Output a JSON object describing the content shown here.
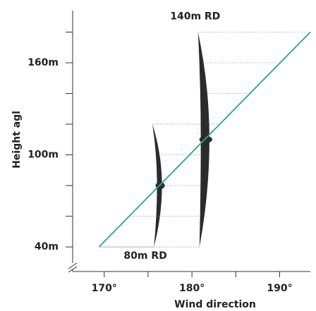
{
  "chart_data": {
    "type": "line",
    "x_label": "Wind direction",
    "y_label": "Height agl",
    "x": [
      169.4,
      193.5
    ],
    "series": [
      {
        "color": "#2aa87e",
        "values": [
          40,
          180
        ]
      }
    ],
    "xlim": [
      166.4,
      193.5
    ],
    "xticks": [
      {
        "value": 170,
        "label": "170°"
      },
      {
        "value": 180,
        "label": "180°"
      },
      {
        "value": 190,
        "label": "190°"
      }
    ],
    "xminor": [
      175,
      185
    ],
    "ylim": [
      24,
      194
    ],
    "yticks": [
      {
        "value": 40,
        "label": "40m"
      },
      {
        "value": 100,
        "label": "100m"
      },
      {
        "value": 160,
        "label": "160m"
      }
    ],
    "yminor": [
      60,
      80,
      120,
      140,
      180
    ],
    "turbines": [
      {
        "label": "80m RD",
        "x": 176.3,
        "hub": 80,
        "diameter": 80
      },
      {
        "label": "140m RD",
        "x": 181.5,
        "hub": 110,
        "diameter": 140
      }
    ]
  }
}
